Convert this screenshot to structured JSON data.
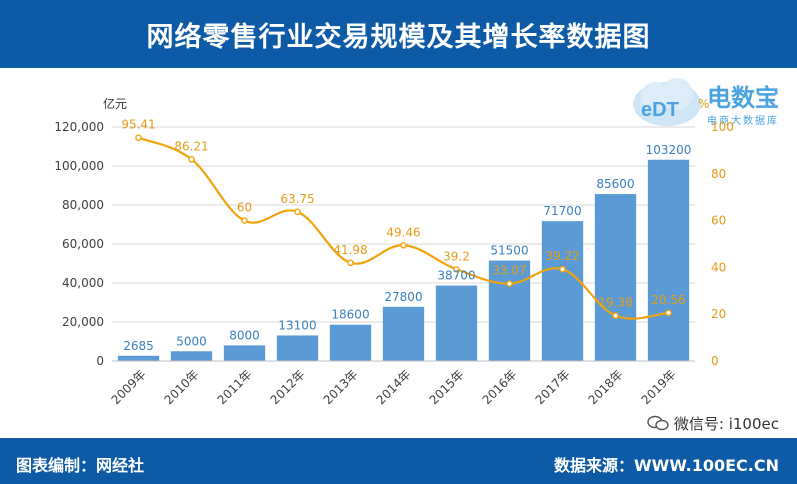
{
  "header": {
    "title": "网络零售行业交易规模及其增长率数据图"
  },
  "footer": {
    "left": "图表编制：网经社",
    "right": "数据来源：WWW.100EC.CN"
  },
  "watermark": {
    "wechat": "微信号: i100ec"
  },
  "logo": {
    "text": "电数宝",
    "latin": "eDT",
    "sub": "电商大数据库"
  },
  "colors": {
    "header": "#0d5aa7",
    "bar": "#5b9bd5",
    "line": "#f0a30a"
  },
  "chart_data": {
    "type": "bar",
    "categories": [
      "2009年",
      "2010年",
      "2011年",
      "2012年",
      "2013年",
      "2014年",
      "2015年",
      "2016年",
      "2017年",
      "2018年",
      "2019年"
    ],
    "series": [
      {
        "values": [
          2685,
          5000,
          8000,
          13100,
          18600,
          27800,
          38700,
          51500,
          71700,
          85600,
          103200
        ],
        "type": "bar",
        "axis": "left"
      },
      {
        "values": [
          95.41,
          86.21,
          60,
          63.75,
          41.98,
          49.46,
          39.2,
          33.07,
          39.22,
          19.38,
          20.56
        ],
        "type": "line",
        "axis": "right"
      }
    ],
    "ylabel": "亿元",
    "y2label": "%",
    "ylim": [
      0,
      120000
    ],
    "y2lim": [
      0,
      100
    ],
    "yticks": [
      "0",
      "20,000",
      "40,000",
      "60,000",
      "80,000",
      "100,000",
      "120,000"
    ],
    "y2ticks": [
      "0",
      "20",
      "40",
      "60",
      "80",
      "100"
    ],
    "bar_labels": [
      "2685",
      "5000",
      "8000",
      "13100",
      "18600",
      "27800",
      "38700",
      "51500",
      "71700",
      "85600",
      "103200"
    ],
    "line_labels": [
      "95.41",
      "86.21",
      "60",
      "63.75",
      "41.98",
      "49.46",
      "39.2",
      "33.07",
      "39.22",
      "19.38",
      "20.56"
    ],
    "grid": true
  }
}
